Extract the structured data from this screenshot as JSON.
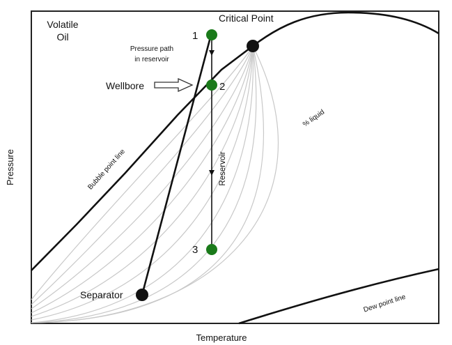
{
  "diagram": {
    "fluid_type_line1": "Volatile",
    "fluid_type_line2": "Oil",
    "critical_point_label": "Critical Point",
    "pressure_path_line1": "Pressure path",
    "pressure_path_line2": "in reservoir",
    "wellbore_label": "Wellbore",
    "point_1": "1",
    "point_2": "2",
    "point_3": "3",
    "reservoir_label": "Reservoir",
    "percent_liquid_label": "% liquid",
    "bubble_point_label": "Bubble point line",
    "dew_point_label": "Dew point line",
    "separator_label": "Separator",
    "x_axis_label": "Temperature",
    "y_axis_label": "Pressure"
  },
  "colors": {
    "envelope": "#111111",
    "quality_lines": "#c8c8c8",
    "state_point": "#1a7a1a",
    "marker": "#111111"
  }
}
